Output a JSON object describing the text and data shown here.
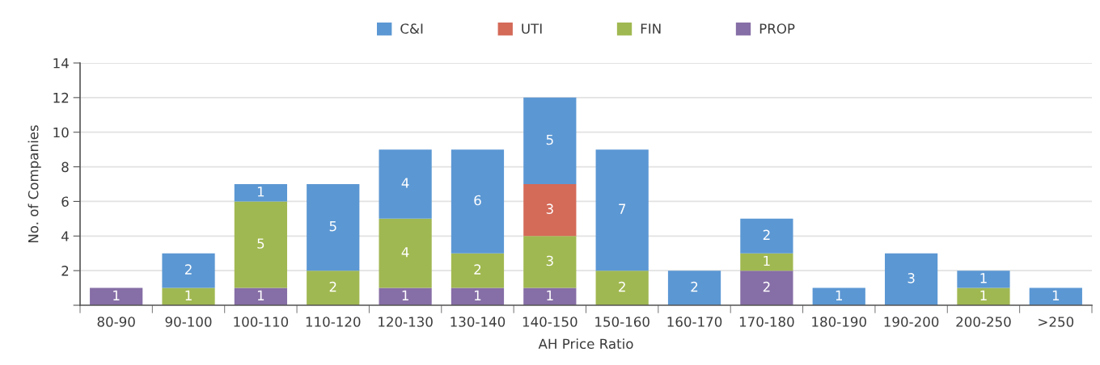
{
  "chart_data": {
    "type": "bar",
    "stacked": true,
    "xlabel": "AH Price Ratio",
    "ylabel": "No. of Companies",
    "categories": [
      "80-90",
      "90-100",
      "100-110",
      "110-120",
      "120-130",
      "130-140",
      "140-150",
      "150-160",
      "160-170",
      "170-180",
      "180-190",
      "190-200",
      "200-250",
      ">250"
    ],
    "series": [
      {
        "name": "PROP",
        "color": "#866ea6",
        "values": [
          1,
          null,
          1,
          null,
          1,
          1,
          1,
          null,
          null,
          2,
          null,
          null,
          null,
          null
        ]
      },
      {
        "name": "FIN",
        "color": "#a0b851",
        "values": [
          null,
          1,
          5,
          2,
          4,
          2,
          3,
          2,
          null,
          1,
          null,
          null,
          1,
          null
        ]
      },
      {
        "name": "UTI",
        "color": "#d46a58",
        "values": [
          null,
          null,
          null,
          null,
          null,
          null,
          3,
          null,
          null,
          null,
          null,
          null,
          null,
          null
        ]
      },
      {
        "name": "C&I",
        "color": "#5b97d3",
        "values": [
          null,
          2,
          1,
          5,
          4,
          6,
          5,
          7,
          2,
          2,
          1,
          3,
          1,
          1
        ]
      }
    ],
    "ylim": [
      0,
      14
    ],
    "yticks": [
      {
        "value": 0,
        "label": null
      },
      2,
      4,
      6,
      8,
      10,
      12,
      14
    ],
    "grid": "y",
    "legend": "top",
    "data_labels": true
  }
}
